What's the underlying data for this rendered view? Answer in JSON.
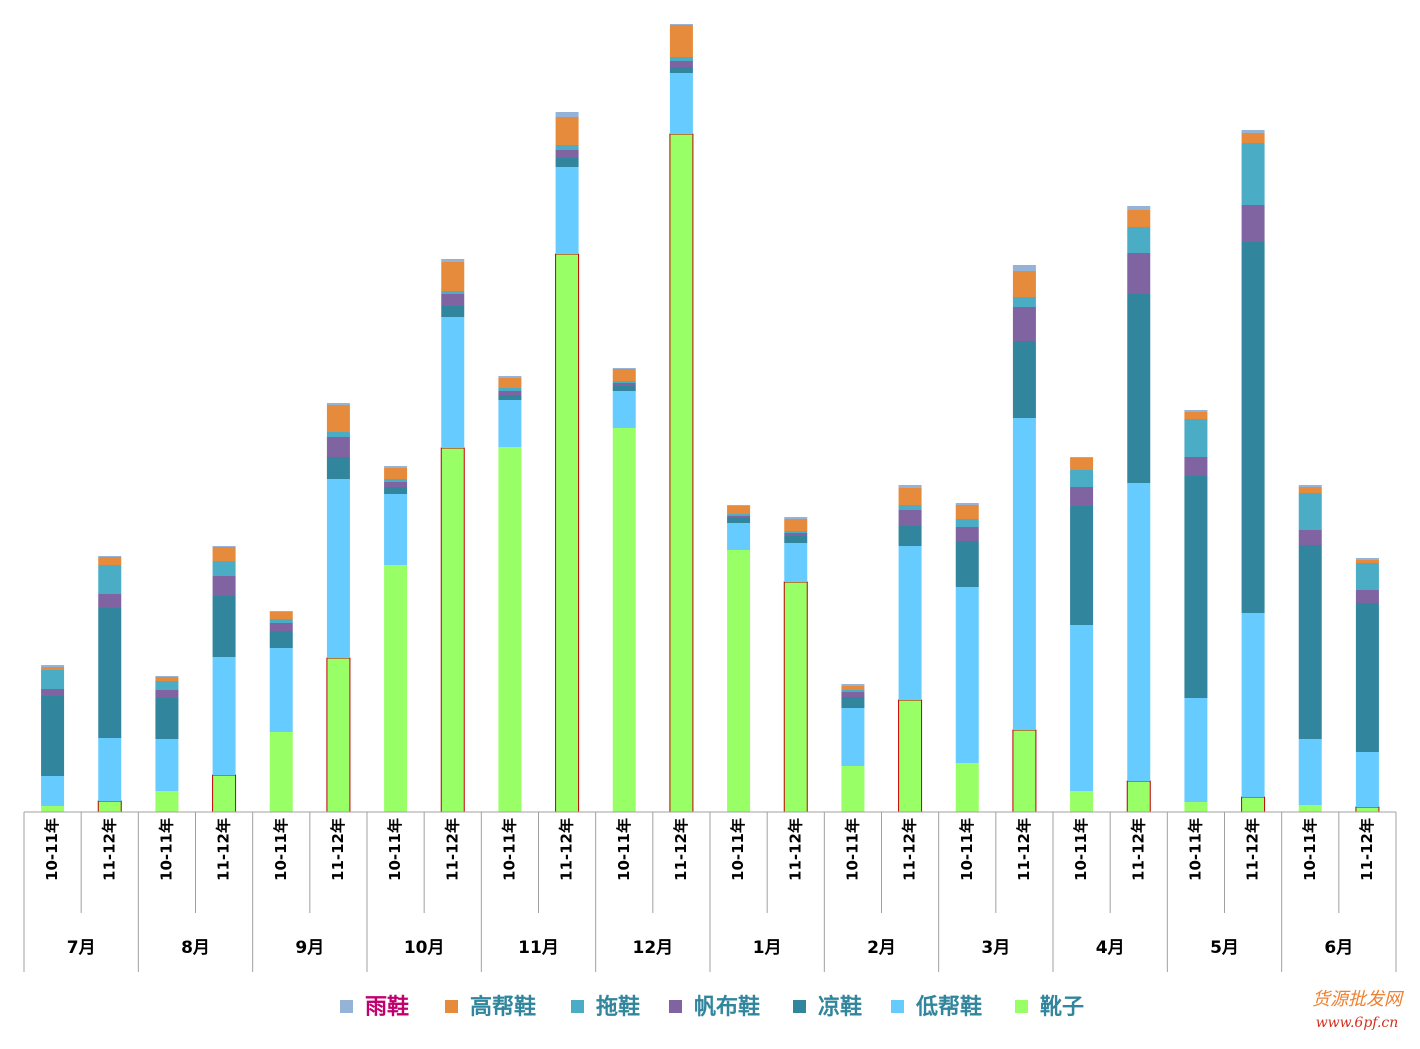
{
  "chart_data": {
    "type": "stacked_bar",
    "groups": [
      "7月",
      "8月",
      "9月",
      "10月",
      "11月",
      "12月",
      "1月",
      "2月",
      "3月",
      "4月",
      "5月",
      "6月"
    ],
    "categories": [
      "10-11年",
      "11-12年",
      "10-11年",
      "11-12年",
      "10-11年",
      "11-12年",
      "10-11年",
      "11-12年",
      "10-11年",
      "11-12年",
      "10-11年",
      "11-12年",
      "10-11年",
      "11-12年",
      "10-11年",
      "11-12年",
      "10-11年",
      "11-12年",
      "10-11年",
      "11-12年",
      "10-11年",
      "11-12年",
      "10-11年",
      "11-12年"
    ],
    "ylim": [
      0,
      800
    ],
    "series": [
      {
        "name": "靴子",
        "color": "#99ff66",
        "values": [
          6,
          11,
          21,
          37,
          80,
          154,
          247,
          364,
          365,
          558,
          384,
          678,
          262,
          230,
          46,
          112,
          49,
          82,
          21,
          31,
          10,
          15,
          7,
          5
        ]
      },
      {
        "name": "低帮鞋",
        "color": "#66ccff",
        "values": [
          30,
          63,
          52,
          118,
          84,
          179,
          71,
          131,
          47,
          87,
          37,
          61,
          27,
          39,
          58,
          154,
          176,
          312,
          166,
          298,
          104,
          184,
          66,
          55
        ]
      },
      {
        "name": "凉鞋",
        "color": "#31859c",
        "values": [
          80,
          130,
          41,
          61,
          17,
          22,
          7,
          11,
          5,
          9,
          5,
          6,
          5,
          7,
          11,
          20,
          46,
          77,
          119,
          189,
          222,
          371,
          194,
          149
        ]
      },
      {
        "name": "帆布鞋",
        "color": "#8064a2",
        "values": [
          7,
          14,
          8,
          20,
          8,
          20,
          5,
          12,
          4,
          8,
          3,
          6,
          2,
          3,
          5,
          16,
          14,
          34,
          19,
          41,
          19,
          37,
          15,
          13
        ]
      },
      {
        "name": "拖鞋",
        "color": "#4bacc6",
        "values": [
          19,
          29,
          9,
          15,
          4,
          5,
          3,
          3,
          3,
          5,
          2,
          4,
          2,
          2,
          2,
          5,
          8,
          10,
          17,
          26,
          38,
          62,
          37,
          27
        ]
      },
      {
        "name": "高帮鞋",
        "color": "#e68a3c",
        "values": [
          3,
          8,
          4,
          14,
          7,
          27,
          11,
          29,
          10,
          28,
          12,
          32,
          8,
          12,
          4,
          17,
          14,
          26,
          12,
          17,
          7,
          10,
          6,
          3
        ]
      },
      {
        "name": "雨鞋",
        "color": "#95b3d7",
        "values": [
          2,
          1,
          1,
          1,
          1,
          2,
          2,
          3,
          2,
          5,
          1,
          1,
          1,
          2,
          2,
          3,
          2,
          6,
          1,
          4,
          2,
          3,
          2,
          2
        ]
      }
    ]
  },
  "watermark": {
    "name": "货源批发网",
    "url": "www.6pf.cn"
  }
}
